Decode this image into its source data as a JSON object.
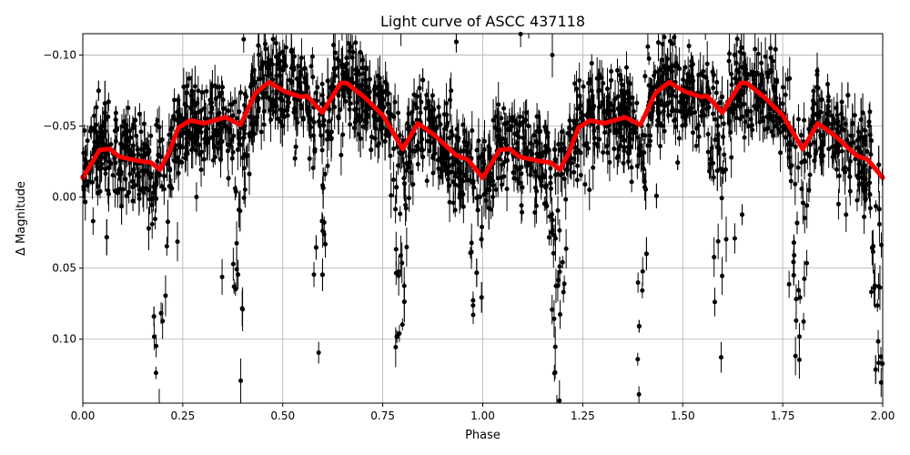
{
  "chart_data": {
    "type": "scatter",
    "title": "Light curve of ASCC 437118",
    "xlabel": "Phase",
    "ylabel": "Δ Magnitude",
    "xlim": [
      0,
      2
    ],
    "ylim": [
      0.145,
      -0.115
    ],
    "y_inverted": true,
    "grid": true,
    "xticks": [
      "0.00",
      "0.25",
      "0.50",
      "0.75",
      "1.00",
      "1.25",
      "1.50",
      "1.75",
      "2.00"
    ],
    "xtick_values": [
      0,
      0.25,
      0.5,
      0.75,
      1,
      1.25,
      1.5,
      1.75,
      2
    ],
    "yticks": [
      "−0.10",
      "−0.05",
      "0.00",
      "0.05",
      "0.10"
    ],
    "ytick_values": [
      -0.1,
      -0.05,
      0,
      0.05,
      0.1
    ],
    "colors": {
      "observations": "#000000",
      "model": "#ff0000"
    },
    "observations": {
      "description_visible": "dense black points with error bars scattered around the model; deep dips near phases 0.19, 0.39, 0.59, 0.79, 0.99 (and +1)",
      "dip_phases": [
        0.19,
        0.39,
        0.59,
        0.79,
        0.99
      ]
    },
    "model": {
      "x": [
        0,
        0.042,
        0.068,
        0.091,
        0.114,
        0.137,
        0.171,
        0.193,
        0.216,
        0.239,
        0.269,
        0.303,
        0.356,
        0.394,
        0.432,
        0.466,
        0.504,
        0.546,
        0.561,
        0.599,
        0.645,
        0.66,
        0.705,
        0.751,
        0.8,
        0.838,
        0.88,
        0.933,
        0.963,
        1.0,
        1.042,
        1.068,
        1.091,
        1.114,
        1.137,
        1.171,
        1.193,
        1.216,
        1.239,
        1.269,
        1.303,
        1.356,
        1.394,
        1.432,
        1.466,
        1.504,
        1.546,
        1.561,
        1.599,
        1.645,
        1.66,
        1.705,
        1.751,
        1.8,
        1.838,
        1.88,
        1.933,
        1.963,
        2.0
      ],
      "y": [
        -0.0135,
        -0.0333,
        -0.0338,
        -0.0284,
        -0.027,
        -0.0256,
        -0.0242,
        -0.0192,
        -0.0316,
        -0.0487,
        -0.054,
        -0.0519,
        -0.0562,
        -0.0508,
        -0.0733,
        -0.0808,
        -0.0744,
        -0.0705,
        -0.0712,
        -0.0594,
        -0.0803,
        -0.0803,
        -0.0701,
        -0.0573,
        -0.0338,
        -0.0519,
        -0.0434,
        -0.0295,
        -0.0263,
        -0.0135,
        -0.0333,
        -0.0338,
        -0.0284,
        -0.027,
        -0.0256,
        -0.0242,
        -0.0192,
        -0.0316,
        -0.0487,
        -0.054,
        -0.0519,
        -0.0562,
        -0.0508,
        -0.0733,
        -0.0808,
        -0.0744,
        -0.0705,
        -0.0712,
        -0.0594,
        -0.0803,
        -0.0803,
        -0.0701,
        -0.0573,
        -0.0338,
        -0.0519,
        -0.0434,
        -0.0295,
        -0.0263,
        -0.0135
      ]
    }
  }
}
